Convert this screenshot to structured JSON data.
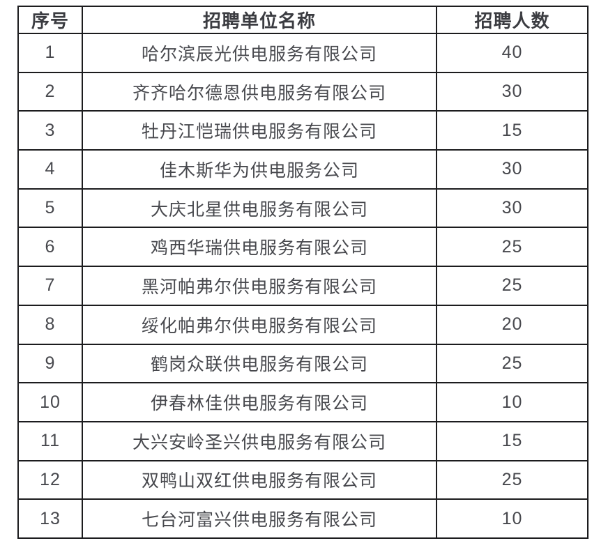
{
  "page": {
    "background_color": "#ffffff"
  },
  "table": {
    "border_color": "#1c1c1e",
    "header_text_color": "#3b3c41",
    "body_text_color": "#47484d",
    "headers": [
      "序号",
      "招聘单位名称",
      "招聘人数"
    ],
    "rows": [
      [
        "1",
        "哈尔滨辰光供电服务有限公司",
        "40"
      ],
      [
        "2",
        "齐齐哈尔德恩供电服务有限公司",
        "30"
      ],
      [
        "3",
        "牡丹江恺瑞供电服务有限公司",
        "15"
      ],
      [
        "4",
        "佳木斯华为供电服务公司",
        "30"
      ],
      [
        "5",
        "大庆北星供电服务有限公司",
        "30"
      ],
      [
        "6",
        "鸡西华瑞供电服务有限公司",
        "25"
      ],
      [
        "7",
        "黑河帕弗尔供电服务有限公司",
        "25"
      ],
      [
        "8",
        "绥化帕弗尔供电服务有限公司",
        "20"
      ],
      [
        "9",
        "鹤岗众联供电服务有限公司",
        "25"
      ],
      [
        "10",
        "伊春林佳供电服务有限公司",
        "10"
      ],
      [
        "11",
        "大兴安岭圣兴供电服务有限公司",
        "15"
      ],
      [
        "12",
        "双鸭山双红供电服务有限公司",
        "25"
      ],
      [
        "13",
        "七台河富兴供电服务有限公司",
        "10"
      ]
    ]
  }
}
